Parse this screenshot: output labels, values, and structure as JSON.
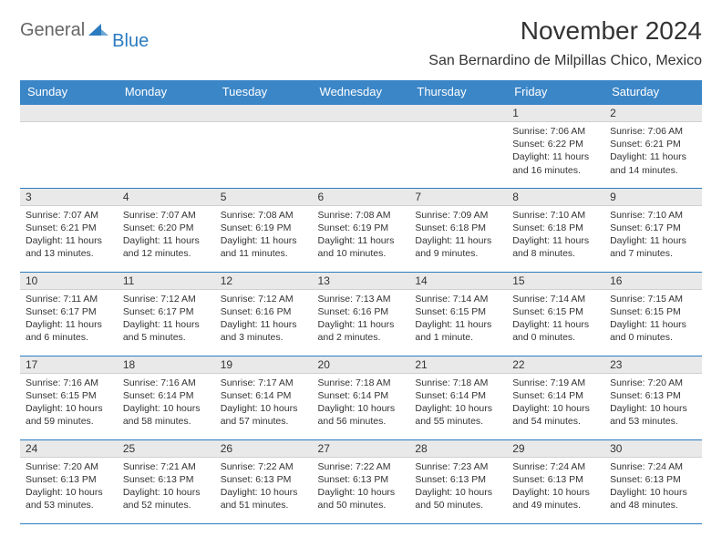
{
  "logo": {
    "text_gray": "General",
    "text_blue": "Blue"
  },
  "title": "November 2024",
  "location": "San Bernardino de Milpillas Chico, Mexico",
  "colors": {
    "header_bg": "#3b86c7",
    "header_text": "#ffffff",
    "daynum_bg": "#e9e9e9",
    "border": "#2b7bbf",
    "logo_gray": "#666666",
    "logo_blue": "#2b7bbf",
    "body_text": "#333333",
    "page_bg": "#ffffff"
  },
  "daysOfWeek": [
    "Sunday",
    "Monday",
    "Tuesday",
    "Wednesday",
    "Thursday",
    "Friday",
    "Saturday"
  ],
  "weeks": [
    [
      {
        "n": "",
        "lines": []
      },
      {
        "n": "",
        "lines": []
      },
      {
        "n": "",
        "lines": []
      },
      {
        "n": "",
        "lines": []
      },
      {
        "n": "",
        "lines": []
      },
      {
        "n": "1",
        "lines": [
          "Sunrise: 7:06 AM",
          "Sunset: 6:22 PM",
          "Daylight: 11 hours and 16 minutes."
        ]
      },
      {
        "n": "2",
        "lines": [
          "Sunrise: 7:06 AM",
          "Sunset: 6:21 PM",
          "Daylight: 11 hours and 14 minutes."
        ]
      }
    ],
    [
      {
        "n": "3",
        "lines": [
          "Sunrise: 7:07 AM",
          "Sunset: 6:21 PM",
          "Daylight: 11 hours and 13 minutes."
        ]
      },
      {
        "n": "4",
        "lines": [
          "Sunrise: 7:07 AM",
          "Sunset: 6:20 PM",
          "Daylight: 11 hours and 12 minutes."
        ]
      },
      {
        "n": "5",
        "lines": [
          "Sunrise: 7:08 AM",
          "Sunset: 6:19 PM",
          "Daylight: 11 hours and 11 minutes."
        ]
      },
      {
        "n": "6",
        "lines": [
          "Sunrise: 7:08 AM",
          "Sunset: 6:19 PM",
          "Daylight: 11 hours and 10 minutes."
        ]
      },
      {
        "n": "7",
        "lines": [
          "Sunrise: 7:09 AM",
          "Sunset: 6:18 PM",
          "Daylight: 11 hours and 9 minutes."
        ]
      },
      {
        "n": "8",
        "lines": [
          "Sunrise: 7:10 AM",
          "Sunset: 6:18 PM",
          "Daylight: 11 hours and 8 minutes."
        ]
      },
      {
        "n": "9",
        "lines": [
          "Sunrise: 7:10 AM",
          "Sunset: 6:17 PM",
          "Daylight: 11 hours and 7 minutes."
        ]
      }
    ],
    [
      {
        "n": "10",
        "lines": [
          "Sunrise: 7:11 AM",
          "Sunset: 6:17 PM",
          "Daylight: 11 hours and 6 minutes."
        ]
      },
      {
        "n": "11",
        "lines": [
          "Sunrise: 7:12 AM",
          "Sunset: 6:17 PM",
          "Daylight: 11 hours and 5 minutes."
        ]
      },
      {
        "n": "12",
        "lines": [
          "Sunrise: 7:12 AM",
          "Sunset: 6:16 PM",
          "Daylight: 11 hours and 3 minutes."
        ]
      },
      {
        "n": "13",
        "lines": [
          "Sunrise: 7:13 AM",
          "Sunset: 6:16 PM",
          "Daylight: 11 hours and 2 minutes."
        ]
      },
      {
        "n": "14",
        "lines": [
          "Sunrise: 7:14 AM",
          "Sunset: 6:15 PM",
          "Daylight: 11 hours and 1 minute."
        ]
      },
      {
        "n": "15",
        "lines": [
          "Sunrise: 7:14 AM",
          "Sunset: 6:15 PM",
          "Daylight: 11 hours and 0 minutes."
        ]
      },
      {
        "n": "16",
        "lines": [
          "Sunrise: 7:15 AM",
          "Sunset: 6:15 PM",
          "Daylight: 11 hours and 0 minutes."
        ]
      }
    ],
    [
      {
        "n": "17",
        "lines": [
          "Sunrise: 7:16 AM",
          "Sunset: 6:15 PM",
          "Daylight: 10 hours and 59 minutes."
        ]
      },
      {
        "n": "18",
        "lines": [
          "Sunrise: 7:16 AM",
          "Sunset: 6:14 PM",
          "Daylight: 10 hours and 58 minutes."
        ]
      },
      {
        "n": "19",
        "lines": [
          "Sunrise: 7:17 AM",
          "Sunset: 6:14 PM",
          "Daylight: 10 hours and 57 minutes."
        ]
      },
      {
        "n": "20",
        "lines": [
          "Sunrise: 7:18 AM",
          "Sunset: 6:14 PM",
          "Daylight: 10 hours and 56 minutes."
        ]
      },
      {
        "n": "21",
        "lines": [
          "Sunrise: 7:18 AM",
          "Sunset: 6:14 PM",
          "Daylight: 10 hours and 55 minutes."
        ]
      },
      {
        "n": "22",
        "lines": [
          "Sunrise: 7:19 AM",
          "Sunset: 6:14 PM",
          "Daylight: 10 hours and 54 minutes."
        ]
      },
      {
        "n": "23",
        "lines": [
          "Sunrise: 7:20 AM",
          "Sunset: 6:13 PM",
          "Daylight: 10 hours and 53 minutes."
        ]
      }
    ],
    [
      {
        "n": "24",
        "lines": [
          "Sunrise: 7:20 AM",
          "Sunset: 6:13 PM",
          "Daylight: 10 hours and 53 minutes."
        ]
      },
      {
        "n": "25",
        "lines": [
          "Sunrise: 7:21 AM",
          "Sunset: 6:13 PM",
          "Daylight: 10 hours and 52 minutes."
        ]
      },
      {
        "n": "26",
        "lines": [
          "Sunrise: 7:22 AM",
          "Sunset: 6:13 PM",
          "Daylight: 10 hours and 51 minutes."
        ]
      },
      {
        "n": "27",
        "lines": [
          "Sunrise: 7:22 AM",
          "Sunset: 6:13 PM",
          "Daylight: 10 hours and 50 minutes."
        ]
      },
      {
        "n": "28",
        "lines": [
          "Sunrise: 7:23 AM",
          "Sunset: 6:13 PM",
          "Daylight: 10 hours and 50 minutes."
        ]
      },
      {
        "n": "29",
        "lines": [
          "Sunrise: 7:24 AM",
          "Sunset: 6:13 PM",
          "Daylight: 10 hours and 49 minutes."
        ]
      },
      {
        "n": "30",
        "lines": [
          "Sunrise: 7:24 AM",
          "Sunset: 6:13 PM",
          "Daylight: 10 hours and 48 minutes."
        ]
      }
    ]
  ]
}
